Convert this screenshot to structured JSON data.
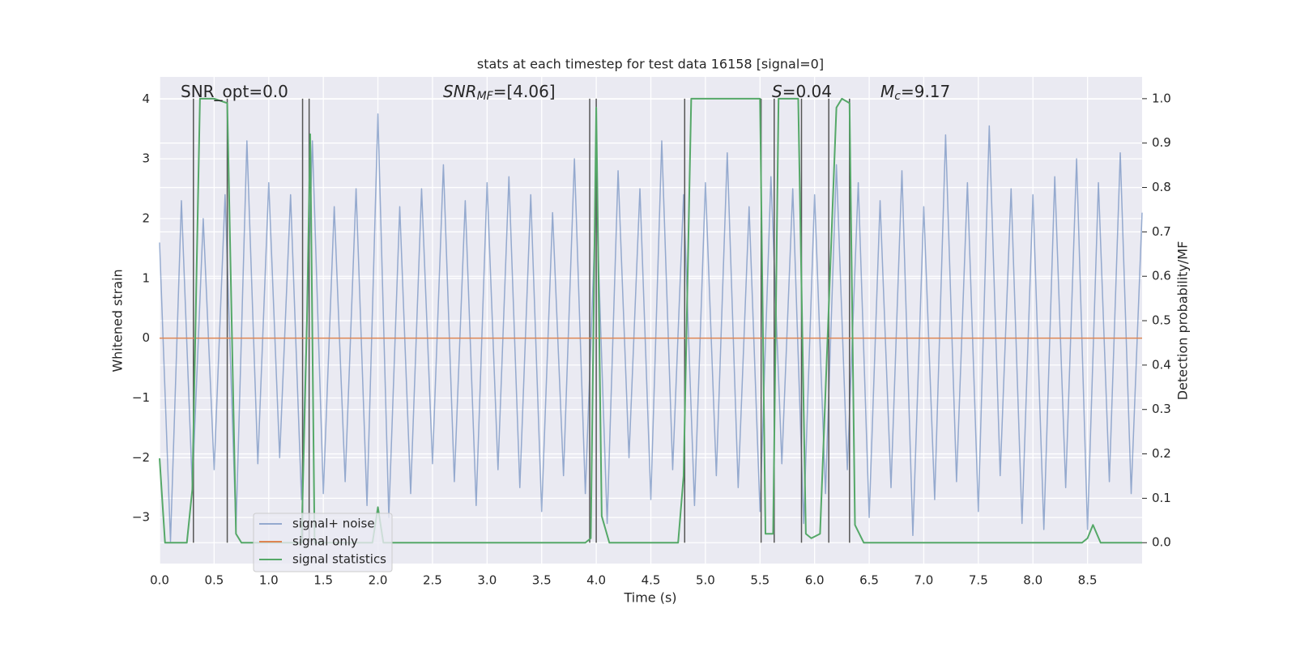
{
  "chart_data": {
    "type": "line",
    "title": "stats at each timestep for test data 16158 [signal=0]",
    "xlabel": "Time (s)",
    "ylabel": "Whitened strain",
    "y2label": "Detection probability/MF",
    "xlim": [
      0,
      9.0
    ],
    "ylim": [
      -3.77,
      4.37
    ],
    "y2lim": [
      -0.047,
      1.049
    ],
    "xticks": [
      {
        "value": 0,
        "label": "0.0"
      },
      0.5,
      {
        "value": 1,
        "label": "1.0"
      },
      1.5,
      {
        "value": 2,
        "label": "2.0"
      },
      2.5,
      {
        "value": 3,
        "label": "3.0"
      },
      3.5,
      {
        "value": 4,
        "label": "4.0"
      },
      4.5,
      {
        "value": 5,
        "label": "5.0"
      },
      5.5,
      {
        "value": 6,
        "label": "6.0"
      },
      6.5,
      {
        "value": 7,
        "label": "7.0"
      },
      7.5,
      {
        "value": 8,
        "label": "8.0"
      },
      8.5
    ],
    "yticks": [
      {
        "value": -3,
        "label": "−3"
      },
      {
        "value": -2,
        "label": "−2"
      },
      {
        "value": -1,
        "label": "−1"
      },
      0,
      1,
      2,
      3,
      4
    ],
    "y2ticks": [
      {
        "value": 0,
        "label": "0.0"
      },
      0.1,
      0.2,
      0.3,
      0.4,
      0.5,
      0.6,
      0.7,
      0.8,
      0.9,
      {
        "value": 1,
        "label": "1.0"
      }
    ],
    "grid": true,
    "legend": "lower left",
    "annotations": [
      [
        {
          "text": "SNR_opt=0.0"
        }
      ],
      [
        {
          "text": "SNR",
          "italic": true
        },
        {
          "text": "MF",
          "italic": true,
          "sub": true
        },
        {
          "text": "=[4.06]"
        }
      ],
      [
        {
          "text": "S",
          "italic": true
        },
        {
          "text": "=0.04"
        }
      ],
      [
        {
          "text": "M",
          "italic": true
        },
        {
          "text": "c",
          "italic": true,
          "sub": true
        },
        {
          "text": "=9.17"
        }
      ]
    ],
    "vlines": [
      0.31,
      0.62,
      1.31,
      1.37,
      3.94,
      4.0,
      4.81,
      5.51,
      5.63,
      5.88,
      6.13,
      6.32
    ],
    "vline_color": "#555555",
    "series": [
      {
        "name": "signal+ noise",
        "color": "#4c72b0",
        "x": [
          0,
          0.1,
          0.2,
          0.3,
          0.4,
          0.5,
          0.6,
          0.7,
          0.8,
          0.9,
          1.0,
          1.1,
          1.2,
          1.3,
          1.4,
          1.5,
          1.6,
          1.7,
          1.8,
          1.9,
          2.0,
          2.1,
          2.2,
          2.3,
          2.4,
          2.5,
          2.6,
          2.7,
          2.8,
          2.9,
          3.0,
          3.1,
          3.2,
          3.3,
          3.4,
          3.5,
          3.6,
          3.7,
          3.8,
          3.9,
          4.0,
          4.1,
          4.2,
          4.3,
          4.4,
          4.5,
          4.6,
          4.7,
          4.8,
          4.9,
          5.0,
          5.1,
          5.2,
          5.3,
          5.4,
          5.5,
          5.6,
          5.7,
          5.8,
          5.9,
          6.0,
          6.1,
          6.2,
          6.3,
          6.4,
          6.5,
          6.6,
          6.7,
          6.8,
          6.9,
          7.0,
          7.1,
          7.2,
          7.3,
          7.4,
          7.5,
          7.6,
          7.7,
          7.8,
          7.9,
          8.0,
          8.1,
          8.2,
          8.3,
          8.4,
          8.5,
          8.6,
          8.7,
          8.8,
          8.9,
          9.0
        ],
        "values": [
          1.6,
          -3.4,
          2.3,
          -2.5,
          2.0,
          -2.2,
          2.4,
          -3.2,
          3.3,
          -2.1,
          2.6,
          -2.0,
          2.4,
          -2.7,
          3.3,
          -2.6,
          2.2,
          -2.4,
          2.5,
          -2.8,
          3.75,
          -3.0,
          2.2,
          -2.6,
          2.5,
          -2.1,
          2.9,
          -2.4,
          2.3,
          -2.8,
          2.6,
          -2.2,
          2.7,
          -2.5,
          2.4,
          -2.9,
          2.1,
          -2.3,
          3.0,
          -2.6,
          2.4,
          -3.1,
          2.8,
          -2.0,
          2.5,
          -2.7,
          3.3,
          -2.2,
          2.4,
          -2.8,
          2.6,
          -2.3,
          3.1,
          -2.5,
          2.2,
          -2.9,
          2.7,
          -2.1,
          2.5,
          -3.1,
          2.4,
          -2.6,
          2.9,
          -2.2,
          2.6,
          -3.0,
          2.3,
          -2.5,
          2.8,
          -3.3,
          2.2,
          -2.7,
          3.4,
          -2.4,
          2.6,
          -2.9,
          3.55,
          -2.3,
          2.5,
          -3.1,
          2.4,
          -3.2,
          2.7,
          -2.5,
          3.0,
          -3.2,
          2.6,
          -2.4,
          3.1,
          -2.6,
          2.1
        ]
      },
      {
        "name": "signal only",
        "color": "#dd8452",
        "x": [
          0,
          9.0
        ],
        "values": [
          0,
          0
        ]
      },
      {
        "name": "signal statistics",
        "color": "#55a868",
        "axis": "y2",
        "x": [
          0,
          0.05,
          0.25,
          0.3,
          0.37,
          0.5,
          0.62,
          0.7,
          0.75,
          1.3,
          1.35,
          1.38,
          1.42,
          1.95,
          2.0,
          2.05,
          3.9,
          3.95,
          4.0,
          4.05,
          4.12,
          4.75,
          4.8,
          4.87,
          5.5,
          5.55,
          5.62,
          5.67,
          5.85,
          5.92,
          5.97,
          6.05,
          6.2,
          6.25,
          6.32,
          6.37,
          6.45,
          8.45,
          8.5,
          8.55,
          8.62,
          9.0
        ],
        "values": [
          0.19,
          0.0,
          0.0,
          0.12,
          1.0,
          1.0,
          0.99,
          0.02,
          0.0,
          0.0,
          0.5,
          0.92,
          0.0,
          0.0,
          0.08,
          0.0,
          0.0,
          0.01,
          0.98,
          0.06,
          0.0,
          0.0,
          0.15,
          1.0,
          1.0,
          0.02,
          0.02,
          1.0,
          1.0,
          0.02,
          0.01,
          0.02,
          0.98,
          1.0,
          0.99,
          0.04,
          0.0,
          0.0,
          0.01,
          0.04,
          0.0,
          0.0
        ]
      }
    ]
  }
}
